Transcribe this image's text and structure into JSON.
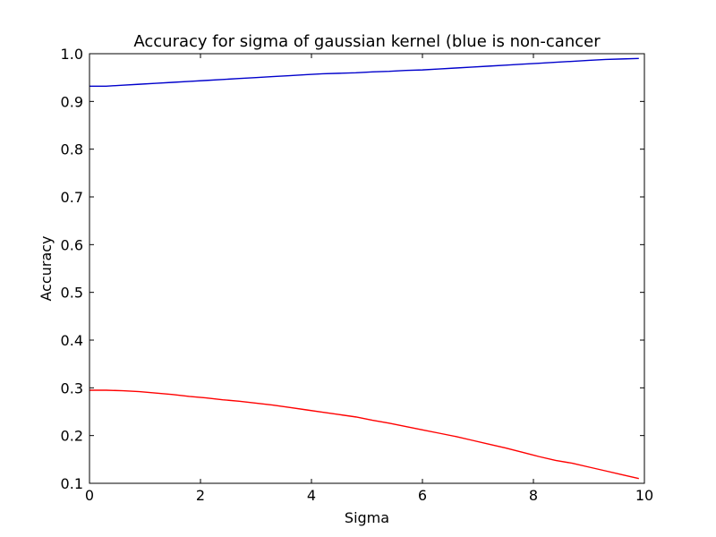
{
  "chart_data": {
    "type": "line",
    "title": "Accuracy for sigma of gaussian kernel (blue is non-cancer",
    "xlabel": "Sigma",
    "ylabel": "Accuracy",
    "xlim": [
      0,
      10
    ],
    "ylim": [
      0.1,
      1.0
    ],
    "xticks": [
      0,
      2,
      4,
      6,
      8,
      10
    ],
    "yticks": [
      0.1,
      0.2,
      0.3,
      0.4,
      0.5,
      0.6,
      0.7,
      0.8,
      0.9,
      1.0
    ],
    "xtick_labels": [
      "0",
      "2",
      "4",
      "6",
      "8",
      "10"
    ],
    "ytick_labels": [
      "0.1",
      "0.2",
      "0.3",
      "0.4",
      "0.5",
      "0.6",
      "0.7",
      "0.8",
      "0.9",
      "1.0"
    ],
    "grid": false,
    "legend": false,
    "x": [
      0,
      0.3,
      0.6,
      0.9,
      1.2,
      1.5,
      1.8,
      2.1,
      2.4,
      2.7,
      3.0,
      3.3,
      3.6,
      3.9,
      4.2,
      4.5,
      4.8,
      5.1,
      5.4,
      5.7,
      6.0,
      6.3,
      6.6,
      6.9,
      7.2,
      7.5,
      7.8,
      8.1,
      8.4,
      8.7,
      9.0,
      9.3,
      9.6,
      9.9
    ],
    "series": [
      {
        "color": "#0000cc",
        "values": [
          0.932,
          0.932,
          0.934,
          0.936,
          0.938,
          0.94,
          0.942,
          0.944,
          0.946,
          0.948,
          0.95,
          0.952,
          0.954,
          0.956,
          0.958,
          0.959,
          0.96,
          0.962,
          0.963,
          0.965,
          0.966,
          0.968,
          0.97,
          0.972,
          0.974,
          0.976,
          0.978,
          0.98,
          0.982,
          0.984,
          0.986,
          0.988,
          0.989,
          0.99
        ]
      },
      {
        "color": "#ff0000",
        "values": [
          0.295,
          0.295,
          0.294,
          0.292,
          0.289,
          0.286,
          0.282,
          0.279,
          0.275,
          0.272,
          0.268,
          0.264,
          0.259,
          0.254,
          0.249,
          0.244,
          0.239,
          0.232,
          0.226,
          0.219,
          0.212,
          0.205,
          0.198,
          0.19,
          0.182,
          0.174,
          0.165,
          0.156,
          0.148,
          0.142,
          0.134,
          0.126,
          0.118,
          0.11
        ]
      }
    ]
  }
}
